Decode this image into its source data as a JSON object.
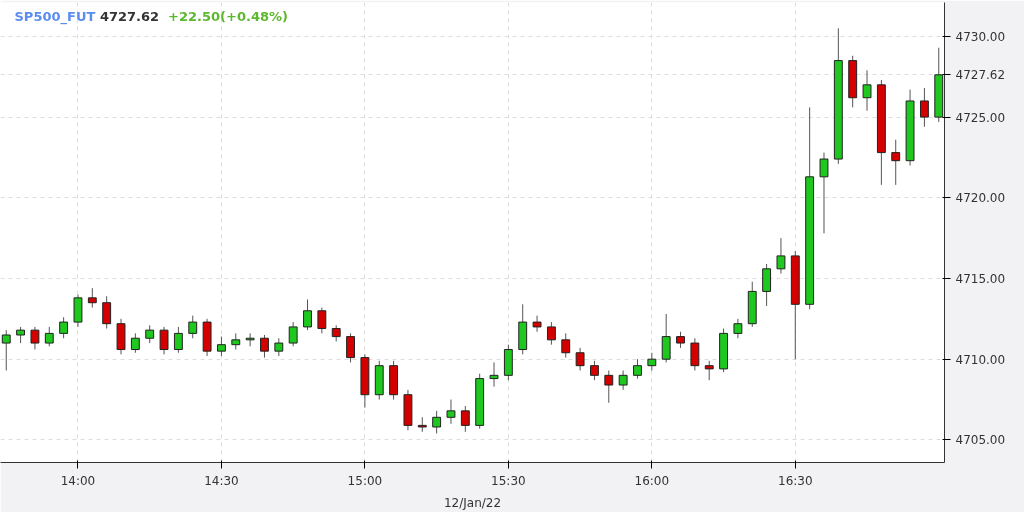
{
  "chart_data": {
    "type": "candlestick",
    "title": "SP500_FUT",
    "annotations": [
      "4727.62",
      "+22.50(+0.48%)"
    ],
    "xlabel": "12/Jan/22",
    "x": [
      13.75,
      13.8,
      13.85,
      13.9,
      13.95,
      14.0,
      14.05,
      14.1,
      14.15,
      14.2,
      14.25,
      14.3,
      14.35,
      14.4,
      14.45,
      14.5,
      14.55,
      14.6,
      14.65,
      14.7,
      14.75,
      14.8,
      14.85,
      14.9,
      14.95,
      15.0,
      15.05,
      15.1,
      15.15,
      15.2,
      15.25,
      15.3,
      15.35,
      15.4,
      15.45,
      15.5,
      15.55,
      15.6,
      15.65,
      15.7,
      15.75,
      15.8,
      15.85,
      15.9,
      15.95,
      16.0,
      16.05,
      16.1,
      16.15,
      16.2,
      16.25,
      16.3,
      16.35,
      16.4,
      16.45,
      16.5,
      16.55,
      16.6,
      16.65,
      16.7,
      16.75,
      16.8,
      16.85,
      16.9,
      16.95,
      17.0
    ],
    "ohlc": [
      [
        4711.0,
        4711.8,
        4709.3,
        4711.5
      ],
      [
        4711.5,
        4712.0,
        4711.0,
        4711.8
      ],
      [
        4711.8,
        4712.0,
        4710.6,
        4711.0
      ],
      [
        4711.0,
        4712.0,
        4710.8,
        4711.6
      ],
      [
        4711.6,
        4712.6,
        4711.3,
        4712.3
      ],
      [
        4712.3,
        4714.0,
        4712.0,
        4713.8
      ],
      [
        4713.8,
        4714.4,
        4713.2,
        4713.5
      ],
      [
        4713.5,
        4713.9,
        4711.9,
        4712.2
      ],
      [
        4712.2,
        4712.5,
        4710.3,
        4710.6
      ],
      [
        4710.6,
        4711.6,
        4710.4,
        4711.3
      ],
      [
        4711.3,
        4712.1,
        4711.0,
        4711.8
      ],
      [
        4711.8,
        4712.0,
        4710.3,
        4710.6
      ],
      [
        4710.6,
        4712.0,
        4710.4,
        4711.6
      ],
      [
        4711.6,
        4712.7,
        4711.3,
        4712.3
      ],
      [
        4712.3,
        4712.5,
        4710.2,
        4710.5
      ],
      [
        4710.5,
        4711.4,
        4710.2,
        4710.9
      ],
      [
        4710.9,
        4711.6,
        4710.6,
        4711.2
      ],
      [
        4711.2,
        4711.6,
        4710.8,
        4711.3
      ],
      [
        4711.3,
        4711.5,
        4710.1,
        4710.5
      ],
      [
        4710.5,
        4711.3,
        4710.2,
        4711.0
      ],
      [
        4711.0,
        4712.3,
        4710.8,
        4712.0
      ],
      [
        4712.0,
        4713.7,
        4711.8,
        4713.0
      ],
      [
        4713.0,
        4713.2,
        4711.6,
        4711.9
      ],
      [
        4711.9,
        4712.1,
        4711.1,
        4711.4
      ],
      [
        4711.4,
        4711.6,
        4709.8,
        4710.1
      ],
      [
        4710.1,
        4710.3,
        4707.0,
        4707.8
      ],
      [
        4707.8,
        4709.9,
        4707.5,
        4709.6
      ],
      [
        4709.6,
        4709.9,
        4707.5,
        4707.8
      ],
      [
        4707.8,
        4708.1,
        4705.6,
        4705.9
      ],
      [
        4705.9,
        4706.4,
        4705.5,
        4705.8
      ],
      [
        4705.8,
        4706.8,
        4705.4,
        4706.4
      ],
      [
        4706.4,
        4707.5,
        4706.0,
        4706.8
      ],
      [
        4706.8,
        4707.1,
        4705.5,
        4705.9
      ],
      [
        4705.9,
        4709.1,
        4705.7,
        4708.8
      ],
      [
        4708.8,
        4709.8,
        4708.3,
        4709.0
      ],
      [
        4709.0,
        4710.9,
        4708.7,
        4710.6
      ],
      [
        4710.6,
        4713.4,
        4710.3,
        4712.3
      ],
      [
        4712.3,
        4712.7,
        4711.7,
        4712.0
      ],
      [
        4712.0,
        4712.3,
        4710.9,
        4711.2
      ],
      [
        4711.2,
        4711.6,
        4710.1,
        4710.4
      ],
      [
        4710.4,
        4710.7,
        4709.3,
        4709.6
      ],
      [
        4709.6,
        4709.9,
        4708.7,
        4709.0
      ],
      [
        4709.0,
        4709.3,
        4707.3,
        4708.4
      ],
      [
        4708.4,
        4709.3,
        4708.1,
        4709.0
      ],
      [
        4709.0,
        4710.0,
        4708.8,
        4709.6
      ],
      [
        4709.6,
        4710.4,
        4709.3,
        4710.0
      ],
      [
        4710.0,
        4712.8,
        4709.8,
        4711.4
      ],
      [
        4711.4,
        4711.7,
        4710.7,
        4711.0
      ],
      [
        4711.0,
        4711.3,
        4709.3,
        4709.6
      ],
      [
        4709.6,
        4709.9,
        4708.7,
        4709.4
      ],
      [
        4709.4,
        4711.9,
        4709.2,
        4711.6
      ],
      [
        4711.6,
        4712.5,
        4711.3,
        4712.2
      ],
      [
        4712.2,
        4714.8,
        4712.0,
        4714.2
      ],
      [
        4714.2,
        4715.9,
        4713.3,
        4715.6
      ],
      [
        4715.6,
        4717.5,
        4715.3,
        4716.4
      ],
      [
        4716.4,
        4716.7,
        4710.0,
        4713.4
      ],
      [
        4713.4,
        4725.6,
        4713.1,
        4721.3
      ],
      [
        4721.3,
        4722.8,
        4717.8,
        4722.4
      ],
      [
        4722.4,
        4730.5,
        4722.1,
        4728.5
      ],
      [
        4728.5,
        4728.8,
        4725.6,
        4726.2
      ],
      [
        4726.2,
        4727.9,
        4725.4,
        4727.0
      ],
      [
        4727.0,
        4727.3,
        4720.8,
        4722.8
      ],
      [
        4722.8,
        4723.6,
        4720.8,
        4722.3
      ],
      [
        4722.3,
        4726.7,
        4722.0,
        4726.0
      ],
      [
        4726.0,
        4726.8,
        4724.4,
        4725.0
      ],
      [
        4725.0,
        4729.3,
        4724.7,
        4727.62
      ]
    ],
    "xlim": [
      13.73,
      17.02
    ],
    "xticks": [
      {
        "value": 14.0,
        "label": "14:00"
      },
      {
        "value": 14.5,
        "label": "14:30"
      },
      {
        "value": 15.0,
        "label": "15:00"
      },
      {
        "value": 15.5,
        "label": "15:30"
      },
      {
        "value": 16.0,
        "label": "16:00"
      },
      {
        "value": 16.5,
        "label": "16:30"
      }
    ],
    "ylim": [
      4703.6,
      4732.1
    ],
    "yticks": [
      {
        "value": 4705,
        "label": "4705.00"
      },
      {
        "value": 4710,
        "label": "4710.00"
      },
      {
        "value": 4715,
        "label": "4715.00"
      },
      {
        "value": 4720,
        "label": "4720.00"
      },
      {
        "value": 4725,
        "label": "4725.00"
      },
      {
        "value": 4727.62,
        "label": "4727.62"
      },
      {
        "value": 4730,
        "label": "4730.00"
      }
    ],
    "grid": true
  }
}
